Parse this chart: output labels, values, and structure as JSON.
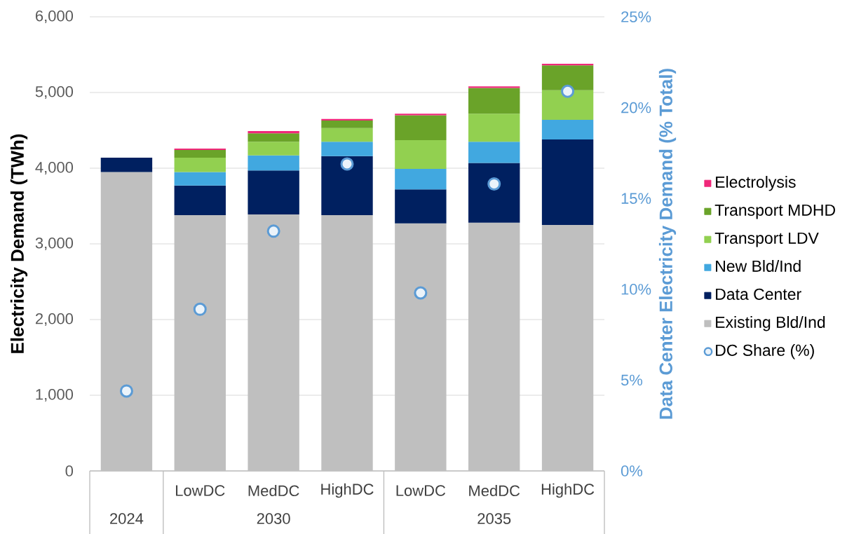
{
  "chart_data": {
    "type": "bar",
    "stacked": true,
    "categories": [
      null,
      "LowDC",
      "MedDC",
      "HighDC",
      "LowDC",
      "MedDC",
      "HighDC"
    ],
    "series": [
      {
        "name": "Existing Bld/Ind",
        "color": "#bfbfbf",
        "values": [
          3950,
          3380,
          3390,
          3380,
          3270,
          3280,
          3250
        ]
      },
      {
        "name": "Data Center",
        "color": "#002060",
        "values": [
          190,
          390,
          580,
          780,
          450,
          790,
          1130
        ]
      },
      {
        "name": "New Bld/Ind",
        "color": "#41a8e0",
        "values": [
          null,
          180,
          200,
          190,
          270,
          280,
          260
        ]
      },
      {
        "name": "Transport LDV",
        "color": "#92d050",
        "values": [
          null,
          190,
          180,
          180,
          380,
          370,
          390
        ]
      },
      {
        "name": "Transport MDHD",
        "color": "#6aa329",
        "values": [
          null,
          100,
          110,
          100,
          330,
          340,
          330
        ]
      },
      {
        "name": "Electrolysis",
        "color": "#f0287a",
        "values": [
          null,
          20,
          30,
          20,
          20,
          20,
          20
        ]
      },
      {
        "name": "DC Share (%)",
        "type": "scatter",
        "axis": "y2",
        "marker": "circle",
        "color": "#5b9bd5",
        "values": [
          4.4,
          8.9,
          13.2,
          16.9,
          9.8,
          15.8,
          20.9
        ]
      }
    ],
    "ylabel": "Electricity Demand (TWh)",
    "y2label": "Data Center Electricity Demand (% Total)",
    "ylim": [
      0,
      6000
    ],
    "yticks": [
      0,
      {
        "value": 1000,
        "label": "1,000"
      },
      {
        "value": 2000,
        "label": "2,000"
      },
      {
        "value": 3000,
        "label": "3,000"
      },
      {
        "value": 4000,
        "label": "4,000"
      },
      {
        "value": 5000,
        "label": "5,000"
      },
      {
        "value": 6000,
        "label": "6,000"
      }
    ],
    "y2lim": [
      0,
      25
    ],
    "y2ticks": [
      {
        "value": 0,
        "label": "0%"
      },
      {
        "value": 5,
        "label": "5%"
      },
      {
        "value": 10,
        "label": "10%"
      },
      {
        "value": 15,
        "label": "15%"
      },
      {
        "value": 20,
        "label": "20%"
      },
      {
        "value": 25,
        "label": "25%"
      }
    ],
    "grid": "y",
    "legend": "right",
    "annotations": [
      "2024",
      "2030",
      "2035"
    ]
  }
}
